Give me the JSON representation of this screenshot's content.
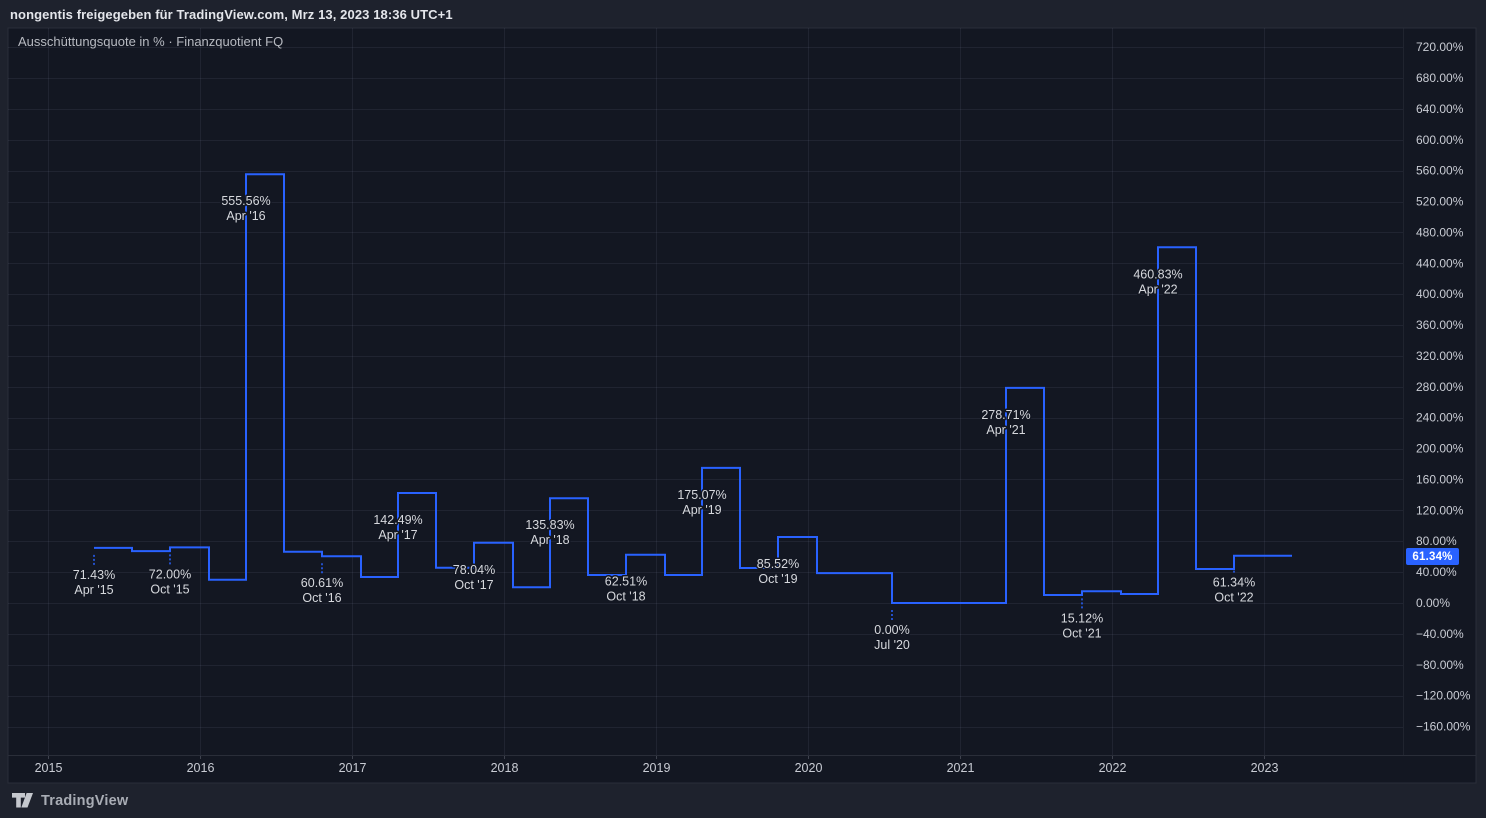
{
  "attribution": {
    "text": "nongentis freigegeben für TradingView.com, Mrz 13, 2023 18:36 UTC+1"
  },
  "legend": {
    "text": "Ausschüttungsquote in % · Finanzquotient FQ"
  },
  "watermark": {
    "brand": "TradingView",
    "icon": "tradingview-logo-icon"
  },
  "y_axis": {
    "labels": [
      "720.00%",
      "680.00%",
      "640.00%",
      "600.00%",
      "560.00%",
      "520.00%",
      "480.00%",
      "440.00%",
      "400.00%",
      "360.00%",
      "320.00%",
      "280.00%",
      "240.00%",
      "200.00%",
      "160.00%",
      "120.00%",
      "80.00%",
      "40.00%",
      "0.00%",
      "−40.00%",
      "−80.00%",
      "−120.00%",
      "−160.00%"
    ],
    "badge": "61.34%",
    "badge_value": 61.34
  },
  "x_axis": {
    "labels": [
      "2015",
      "2016",
      "2017",
      "2018",
      "2019",
      "2020",
      "2021",
      "2022",
      "2023"
    ]
  },
  "colors": {
    "accent_line": "#2962ff",
    "badge_bg": "#2962ff",
    "badge_text": "#ffffff",
    "page_bg": "#1e222d",
    "pane_bg": "#131722",
    "border": "#2a2e39",
    "grid": "rgba(151,161,188,0.10)",
    "tick": "#3f434f",
    "axis_text": "#c9ccd4",
    "annotation_text": "#d6d8dd",
    "legend_text": "#b7bac1",
    "attribution_text": "#e4e6eb",
    "logo_text": "#a9adb5"
  },
  "chart_data": {
    "type": "line",
    "subtype": "step",
    "title": "Ausschüttungsquote in % · Finanzquotient FQ",
    "xlabel": "",
    "ylabel": "",
    "x_range": [
      "2015",
      "2023"
    ],
    "ylim": [
      -160,
      720
    ],
    "y_tick_step": 40,
    "grid": true,
    "legend_position": "top-left",
    "series": [
      {
        "name": "Ausschüttungsquote in %",
        "points": [
          {
            "period": "Apr '15",
            "value": 71.43,
            "label_value": "71.43%",
            "label_date": "Apr '15",
            "placement": "below"
          },
          {
            "period": "Jul '15",
            "value": 67.3,
            "estimated": true
          },
          {
            "period": "Oct '15",
            "value": 72.0,
            "label_value": "72.00%",
            "label_date": "Oct '15",
            "placement": "below"
          },
          {
            "period": "Jan '16",
            "value": 30.0,
            "estimated": true
          },
          {
            "period": "Apr '16",
            "value": 555.56,
            "label_value": "555.56%",
            "label_date": "Apr '16",
            "placement": "peak"
          },
          {
            "period": "Jul '16",
            "value": 66.4,
            "estimated": true
          },
          {
            "period": "Oct '16",
            "value": 60.61,
            "label_value": "60.61%",
            "label_date": "Oct '16",
            "placement": "below"
          },
          {
            "period": "Jan '17",
            "value": 33.7,
            "estimated": true
          },
          {
            "period": "Apr '17",
            "value": 142.49,
            "label_value": "142.49%",
            "label_date": "Apr '17",
            "placement": "peak"
          },
          {
            "period": "Jul '17",
            "value": 45.7,
            "estimated": true
          },
          {
            "period": "Oct '17",
            "value": 78.04,
            "label_value": "78.04%",
            "label_date": "Oct '17",
            "placement": "below"
          },
          {
            "period": "Jan '18",
            "value": 20.3,
            "estimated": true
          },
          {
            "period": "Apr '18",
            "value": 135.83,
            "label_value": "135.83%",
            "label_date": "Apr '18",
            "placement": "peak"
          },
          {
            "period": "Jul '18",
            "value": 36.3,
            "estimated": true
          },
          {
            "period": "Oct '18",
            "value": 62.51,
            "label_value": "62.51%",
            "label_date": "Oct '18",
            "placement": "below"
          },
          {
            "period": "Jan '19",
            "value": 36.3,
            "estimated": true
          },
          {
            "period": "Apr '19",
            "value": 175.07,
            "label_value": "175.07%",
            "label_date": "Apr '19",
            "placement": "peak"
          },
          {
            "period": "Jul '19",
            "value": 45.3,
            "estimated": true
          },
          {
            "period": "Oct '19",
            "value": 85.52,
            "label_value": "85.52%",
            "label_date": "Oct '19",
            "placement": "below"
          },
          {
            "period": "Jan '20",
            "value": 38.8,
            "estimated": true
          },
          {
            "period": "Apr '20",
            "value": 38.8,
            "estimated": true
          },
          {
            "period": "Jul '20",
            "value": 0.0,
            "label_value": "0.00%",
            "label_date": "Jul '20",
            "placement": "below"
          },
          {
            "period": "Oct '20",
            "value": 0.0,
            "estimated": true
          },
          {
            "period": "Jan '21",
            "value": 0.0,
            "estimated": true
          },
          {
            "period": "Apr '21",
            "value": 278.71,
            "label_value": "278.71%",
            "label_date": "Apr '21",
            "placement": "peak"
          },
          {
            "period": "Jul '21",
            "value": 10.4,
            "estimated": true
          },
          {
            "period": "Oct '21",
            "value": 15.12,
            "label_value": "15.12%",
            "label_date": "Oct '21",
            "placement": "below"
          },
          {
            "period": "Jan '22",
            "value": 11.7,
            "estimated": true
          },
          {
            "period": "Apr '22",
            "value": 460.83,
            "label_value": "460.83%",
            "label_date": "Apr '22",
            "placement": "peak"
          },
          {
            "period": "Jul '22",
            "value": 44.0,
            "estimated": true
          },
          {
            "period": "Oct '22",
            "value": 61.34,
            "label_value": "61.34%",
            "label_date": "Oct '22",
            "placement": "below"
          }
        ]
      }
    ]
  }
}
